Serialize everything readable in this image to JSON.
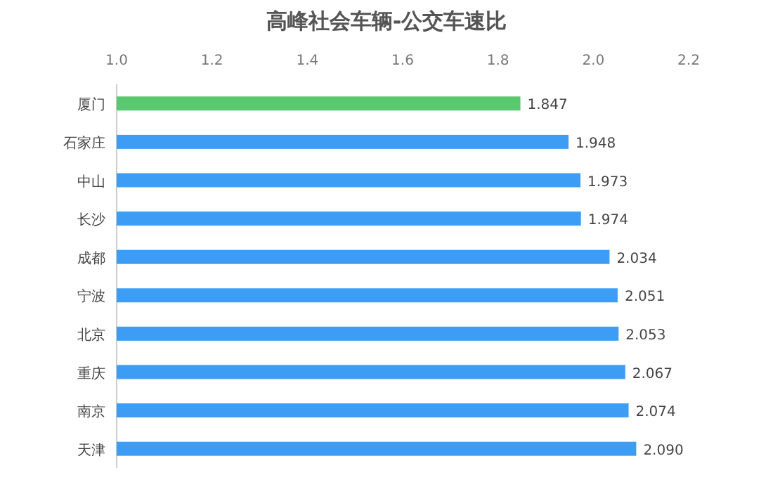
{
  "chart_data": {
    "type": "bar",
    "orientation": "horizontal",
    "title": "高峰社会车辆-公交车速比",
    "categories": [
      "厦门",
      "石家庄",
      "中山",
      "长沙",
      "成都",
      "宁波",
      "北京",
      "重庆",
      "南京",
      "天津"
    ],
    "values": [
      1.847,
      1.948,
      1.973,
      1.974,
      2.034,
      2.051,
      2.053,
      2.067,
      2.074,
      2.09
    ],
    "colors": [
      "#5ac86e",
      "#3d9df5",
      "#3d9df5",
      "#3d9df5",
      "#3d9df5",
      "#3d9df5",
      "#3d9df5",
      "#3d9df5",
      "#3d9df5",
      "#3d9df5"
    ],
    "xlim": [
      1.0,
      2.2
    ],
    "xticks": [
      {
        "value": 1.0,
        "label": "1.0"
      },
      1.2,
      1.4,
      1.6,
      1.8,
      {
        "value": 2.0,
        "label": "2.0"
      },
      2.2
    ],
    "value_labels": [
      "1.847",
      "1.948",
      "1.973",
      "1.974",
      "2.034",
      "2.051",
      "2.053",
      "2.067",
      "2.074",
      "2.090"
    ]
  }
}
